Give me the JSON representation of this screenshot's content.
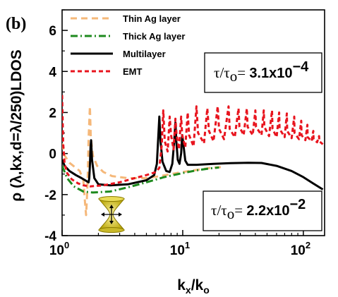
{
  "panel_label": "(b)",
  "chart_data": {
    "type": "line",
    "x_scale": "log",
    "xlim": [
      1,
      150
    ],
    "ylim": [
      -4,
      7
    ],
    "xlabel_main": "k",
    "xlabel_sub1": "x",
    "xlabel_sep": "/k",
    "xlabel_sub2": "o",
    "ylabel": "ρ (λ,kx,d=λ/250)LDOS",
    "x_ticks": [
      {
        "value": 1,
        "base": "10",
        "exp": "0"
      },
      {
        "value": 10,
        "base": "10",
        "exp": "1"
      },
      {
        "value": 100,
        "base": "10",
        "exp": "2"
      }
    ],
    "y_ticks": [
      -4,
      -2,
      0,
      2,
      4,
      6
    ],
    "legend_position": "top-left",
    "series": [
      {
        "name": "Thin Ag layer",
        "color": "#f5b87a",
        "dash": "9,6",
        "width": 3,
        "points": [
          [
            1.0,
            0.5
          ],
          [
            1.05,
            -0.1
          ],
          [
            1.15,
            -0.45
          ],
          [
            1.3,
            -0.7
          ],
          [
            1.4,
            -0.85
          ],
          [
            1.5,
            -1.3
          ],
          [
            1.55,
            -2.4
          ],
          [
            1.58,
            -3.0
          ],
          [
            1.6,
            -2.4
          ],
          [
            1.63,
            -1.2
          ],
          [
            1.66,
            0.8
          ],
          [
            1.7,
            2.3
          ],
          [
            1.73,
            0.8
          ],
          [
            1.8,
            -0.1
          ],
          [
            1.95,
            -0.6
          ],
          [
            2.2,
            -0.9
          ],
          [
            2.6,
            -1.1
          ],
          [
            3.5,
            -1.2
          ],
          [
            5,
            -1.2
          ],
          [
            6.5,
            -1.1
          ],
          [
            8,
            -1.0
          ],
          [
            10,
            -0.9
          ],
          [
            13,
            -0.8
          ],
          [
            17,
            -0.7
          ],
          [
            22,
            -0.65
          ]
        ]
      },
      {
        "name": "Thick Ag layer",
        "color": "#1e8a1e",
        "dash": "10,4,2,4",
        "width": 3,
        "points": [
          [
            1.0,
            -0.6
          ],
          [
            1.1,
            -1.2
          ],
          [
            1.25,
            -1.6
          ],
          [
            1.5,
            -1.85
          ],
          [
            1.8,
            -1.9
          ],
          [
            2.5,
            -1.85
          ],
          [
            3.5,
            -1.65
          ],
          [
            5,
            -1.4
          ],
          [
            7,
            -1.15
          ],
          [
            10,
            -0.95
          ],
          [
            13,
            -0.82
          ],
          [
            17,
            -0.72
          ],
          [
            20,
            -0.68
          ]
        ]
      },
      {
        "name": "Multilayer",
        "color": "#000000",
        "dash": "",
        "width": 3,
        "points": [
          [
            1.0,
            -0.3
          ],
          [
            1.05,
            -0.6
          ],
          [
            1.15,
            -0.85
          ],
          [
            1.3,
            -1.05
          ],
          [
            1.45,
            -1.2
          ],
          [
            1.6,
            -1.35
          ],
          [
            1.66,
            -1.4
          ],
          [
            1.68,
            -1.2
          ],
          [
            1.7,
            -0.6
          ],
          [
            1.72,
            0.3
          ],
          [
            1.74,
            0.65
          ],
          [
            1.77,
            -0.3
          ],
          [
            1.85,
            -1.2
          ],
          [
            2.0,
            -1.5
          ],
          [
            2.5,
            -1.55
          ],
          [
            3.5,
            -1.5
          ],
          [
            5,
            -1.3
          ],
          [
            5.8,
            -1.05
          ],
          [
            6.1,
            -0.5
          ],
          [
            6.3,
            1.0
          ],
          [
            6.4,
            1.8
          ],
          [
            6.55,
            0.6
          ],
          [
            6.8,
            -0.4
          ],
          [
            7.3,
            -0.85
          ],
          [
            7.8,
            -0.9
          ],
          [
            8.2,
            -0.5
          ],
          [
            8.5,
            0.6
          ],
          [
            8.7,
            1.5
          ],
          [
            8.85,
            0.6
          ],
          [
            9.1,
            -0.3
          ],
          [
            9.4,
            -0.5
          ],
          [
            9.7,
            0.0
          ],
          [
            9.9,
            0.9
          ],
          [
            10.1,
            0.5
          ],
          [
            10.5,
            -0.35
          ],
          [
            11,
            -0.55
          ],
          [
            13,
            -0.55
          ],
          [
            18,
            -0.5
          ],
          [
            25,
            -0.47
          ],
          [
            35,
            -0.45
          ],
          [
            45,
            -0.46
          ],
          [
            60,
            -0.6
          ],
          [
            80,
            -0.85
          ],
          [
            100,
            -1.15
          ],
          [
            120,
            -1.45
          ],
          [
            145,
            -1.75
          ]
        ]
      },
      {
        "name": "EMT",
        "color": "#e8141e",
        "dash": "6,4",
        "width": 3,
        "points": [
          [
            1.0,
            2.85
          ],
          [
            1.02,
            0.5
          ],
          [
            1.05,
            -0.5
          ],
          [
            1.1,
            -0.95
          ],
          [
            1.2,
            -1.25
          ],
          [
            1.35,
            -1.45
          ],
          [
            1.5,
            -1.55
          ],
          [
            1.7,
            -1.6
          ],
          [
            2.2,
            -1.55
          ],
          [
            3,
            -1.4
          ],
          [
            4,
            -1.2
          ],
          [
            5,
            -1.05
          ],
          [
            6,
            -0.9
          ],
          [
            6.4,
            -0.7
          ],
          [
            6.7,
            0.4
          ],
          [
            6.9,
            2.1
          ],
          [
            7.1,
            0.6
          ],
          [
            7.5,
            0.1
          ],
          [
            7.8,
            1.8
          ],
          [
            8.0,
            0.9
          ],
          [
            8.4,
            0.2
          ],
          [
            8.7,
            1.7
          ],
          [
            8.9,
            0.9
          ],
          [
            9.3,
            0.2
          ],
          [
            9.7,
            1.8
          ],
          [
            9.9,
            0.9
          ],
          [
            10.5,
            0.3
          ],
          [
            11,
            2.0
          ],
          [
            11.3,
            0.9
          ],
          [
            12.3,
            0.35
          ],
          [
            13,
            2.3
          ],
          [
            13.4,
            1.0
          ],
          [
            15,
            0.5
          ],
          [
            16,
            2.2
          ],
          [
            16.5,
            1.1
          ],
          [
            18,
            0.6
          ],
          [
            19.5,
            2.3
          ],
          [
            20,
            1.2
          ],
          [
            22,
            0.7
          ],
          [
            24,
            2.3
          ],
          [
            24.5,
            1.2
          ],
          [
            27,
            0.8
          ],
          [
            29,
            2.2
          ],
          [
            29.5,
            1.3
          ],
          [
            32,
            0.9
          ],
          [
            34,
            2.2
          ],
          [
            34.5,
            1.3
          ],
          [
            38,
            0.9
          ],
          [
            40,
            2.1
          ],
          [
            40.5,
            1.3
          ],
          [
            45,
            0.9
          ],
          [
            47,
            2.1
          ],
          [
            47.5,
            1.3
          ],
          [
            52,
            0.85
          ],
          [
            55,
            2.1
          ],
          [
            55.5,
            1.2
          ],
          [
            60,
            0.8
          ],
          [
            63,
            2.0
          ],
          [
            63.5,
            1.2
          ],
          [
            70,
            0.8
          ],
          [
            73,
            1.95
          ],
          [
            73.5,
            1.1
          ],
          [
            80,
            0.75
          ],
          [
            84,
            1.8
          ],
          [
            84.5,
            1.0
          ],
          [
            92,
            0.7
          ],
          [
            96,
            1.6
          ],
          [
            96.5,
            0.9
          ],
          [
            104,
            0.65
          ],
          [
            108,
            1.4
          ],
          [
            108.5,
            0.8
          ],
          [
            117,
            0.6
          ],
          [
            121,
            1.1
          ],
          [
            121.5,
            0.7
          ],
          [
            130,
            0.55
          ],
          [
            135,
            0.85
          ],
          [
            135.5,
            0.6
          ],
          [
            145,
            0.45
          ]
        ]
      }
    ],
    "annotations": [
      {
        "lhs": "τ/τ",
        "lhs_sub": "o",
        "eq": "= ",
        "value": "3.1x10",
        "exp": "−4"
      },
      {
        "lhs": "τ/τ",
        "lhs_sub": "o",
        "eq": "= ",
        "value": "2.2x10",
        "exp": "−2"
      }
    ]
  }
}
